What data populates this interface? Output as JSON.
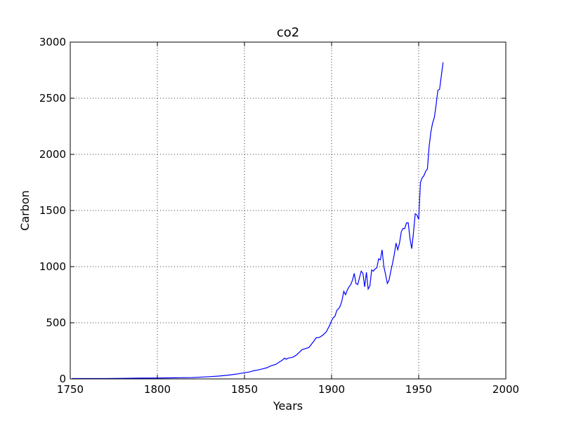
{
  "chart_data": {
    "type": "line",
    "title": "co2",
    "xlabel": "Years",
    "ylabel": "Carbon",
    "xlim": [
      1750,
      2000
    ],
    "ylim": [
      0,
      3000
    ],
    "xticks": [
      "1750",
      "1800",
      "1850",
      "1900",
      "1950",
      "2000"
    ],
    "yticks": [
      "0",
      "500",
      "1000",
      "1500",
      "2000",
      "2500",
      "3000"
    ],
    "grid": true,
    "series": [
      {
        "color": "#0000ff",
        "x": [
          1751,
          1760,
          1770,
          1780,
          1790,
          1800,
          1810,
          1820,
          1830,
          1835,
          1840,
          1845,
          1850,
          1853,
          1855,
          1858,
          1860,
          1863,
          1865,
          1868,
          1870,
          1872,
          1873,
          1874,
          1875,
          1877,
          1878,
          1880,
          1882,
          1883,
          1885,
          1887,
          1888,
          1890,
          1891,
          1893,
          1895,
          1897,
          1899,
          1900,
          1901,
          1902,
          1903,
          1904,
          1905,
          1906,
          1907,
          1908,
          1909,
          1910,
          1911,
          1912,
          1913,
          1914,
          1915,
          1916,
          1917,
          1918,
          1919,
          1920,
          1921,
          1922,
          1923,
          1924,
          1925,
          1926,
          1927,
          1928,
          1929,
          1930,
          1931,
          1932,
          1933,
          1934,
          1935,
          1936,
          1937,
          1938,
          1939,
          1940,
          1941,
          1942,
          1943,
          1944,
          1945,
          1946,
          1947,
          1948,
          1949,
          1950,
          1951,
          1952,
          1953,
          1954,
          1955,
          1956,
          1957,
          1958,
          1959,
          1960,
          1961,
          1962,
          1963,
          1964
        ],
        "y": [
          3,
          3,
          3,
          5,
          7,
          8,
          10,
          12,
          20,
          25,
          32,
          42,
          55,
          62,
          72,
          80,
          88,
          100,
          115,
          130,
          150,
          170,
          185,
          175,
          185,
          190,
          195,
          215,
          245,
          260,
          270,
          280,
          300,
          340,
          365,
          370,
          390,
          420,
          480,
          520,
          545,
          560,
          610,
          625,
          650,
          700,
          780,
          750,
          790,
          820,
          840,
          880,
          940,
          850,
          840,
          900,
          960,
          940,
          820,
          950,
          800,
          830,
          970,
          960,
          980,
          990,
          1070,
          1060,
          1150,
          1000,
          930,
          850,
          880,
          960,
          1030,
          1110,
          1210,
          1150,
          1210,
          1310,
          1340,
          1340,
          1390,
          1390,
          1250,
          1160,
          1300,
          1470,
          1460,
          1420,
          1750,
          1790,
          1810,
          1850,
          1870,
          2070,
          2200,
          2280,
          2330,
          2440,
          2570,
          2580,
          2700,
          2820
        ]
      }
    ]
  }
}
